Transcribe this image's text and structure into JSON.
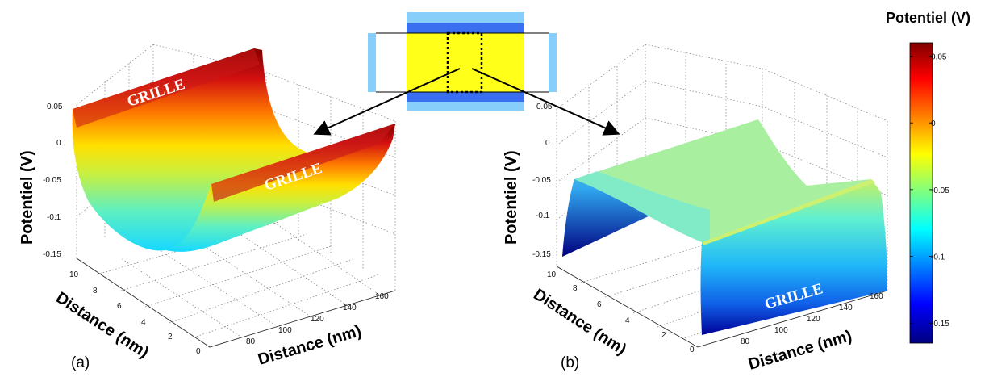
{
  "colorbar": {
    "title": "Potentiel (V)",
    "ticks": [
      "0.05",
      "0",
      "-0.05",
      "-0.1",
      "-0.15"
    ],
    "tick_values": [
      0.05,
      0,
      -0.05,
      -0.1,
      -0.15
    ],
    "range": [
      -0.165,
      0.06
    ],
    "colormap": "jet"
  },
  "chart_data": [
    {
      "type": "surface",
      "panel_label": "(a)",
      "zlabel": "Potentiel (V)",
      "xlabel": "Distance (nm)",
      "ylabel": "Distance (nm)",
      "xlim": [
        70,
        160
      ],
      "ylim": [
        0,
        10
      ],
      "zlim": [
        -0.16,
        0.06
      ],
      "xticks": [
        "80",
        "100",
        "120",
        "140",
        "160"
      ],
      "yticks": [
        "0",
        "2",
        "4",
        "6",
        "8",
        "10"
      ],
      "zticks": [
        "0.05",
        "0",
        "-0.05",
        "-0.1",
        "-0.15"
      ],
      "grid": true,
      "profile_x_nm": [
        70,
        85,
        100,
        115,
        130,
        145,
        160
      ],
      "profile_potential_V": [
        0.06,
        -0.03,
        -0.12,
        -0.15,
        -0.12,
        -0.03,
        0.06
      ],
      "annotations": [
        "GRILLE",
        "GRILLE"
      ]
    },
    {
      "type": "surface",
      "panel_label": "(b)",
      "zlabel": "Potentiel (V)",
      "xlabel": "Distance (nm)",
      "ylabel": "Distance (nm)",
      "xlim": [
        70,
        160
      ],
      "ylim": [
        0,
        10
      ],
      "zlim": [
        -0.16,
        0.06
      ],
      "xticks": [
        "80",
        "100",
        "120",
        "140",
        "160"
      ],
      "yticks": [
        "0",
        "2",
        "4",
        "6",
        "8",
        "10"
      ],
      "zticks": [
        "0.05",
        "0",
        "-0.05",
        "-0.1",
        "-0.15"
      ],
      "grid": true,
      "profile_y_nm": [
        0,
        2,
        5,
        8,
        10
      ],
      "profile_potential_V": [
        -0.16,
        -0.08,
        -0.04,
        -0.08,
        -0.16
      ],
      "annotations": [
        "GRILLE"
      ]
    }
  ]
}
